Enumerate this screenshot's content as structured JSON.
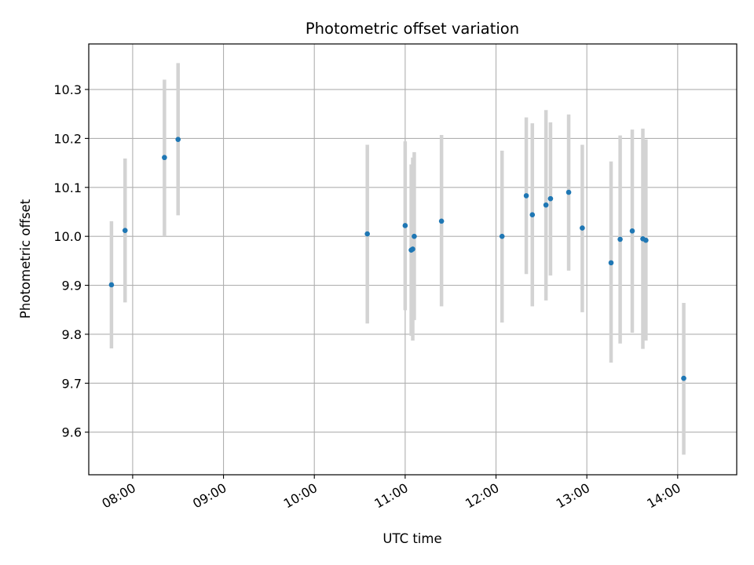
{
  "chart_data": {
    "type": "scatter",
    "title": "Photometric offset variation",
    "xlabel": "UTC time",
    "ylabel": "Photometric offset",
    "x_unit": "UTC time (HH:MM)",
    "xlim": [
      "07:31",
      "14:39"
    ],
    "ylim": [
      9.513,
      10.393
    ],
    "grid": true,
    "x_ticks": [
      "08:00",
      "09:00",
      "10:00",
      "11:00",
      "12:00",
      "13:00",
      "14:00"
    ],
    "y_ticks": [
      "9.6",
      "9.7",
      "9.8",
      "9.9",
      "10.0",
      "10.1",
      "10.2",
      "10.3"
    ],
    "point_color": "#1f77b4",
    "errorbar_color": "#d3d3d3",
    "points": [
      {
        "x": "07:46",
        "y": 9.901,
        "ylow": 9.771,
        "yhigh": 10.031
      },
      {
        "x": "07:55",
        "y": 10.012,
        "ylow": 9.865,
        "yhigh": 10.159
      },
      {
        "x": "08:21",
        "y": 10.161,
        "ylow": 10.0,
        "yhigh": 10.32
      },
      {
        "x": "08:30",
        "y": 10.198,
        "ylow": 10.043,
        "yhigh": 10.354
      },
      {
        "x": "10:35",
        "y": 10.005,
        "ylow": 9.822,
        "yhigh": 10.187
      },
      {
        "x": "11:00",
        "y": 10.022,
        "ylow": 9.849,
        "yhigh": 10.194
      },
      {
        "x": "11:04",
        "y": 9.972,
        "ylow": 9.797,
        "yhigh": 10.147
      },
      {
        "x": "11:05",
        "y": 9.974,
        "ylow": 9.787,
        "yhigh": 10.161
      },
      {
        "x": "11:06",
        "y": 10.0,
        "ylow": 9.829,
        "yhigh": 10.172
      },
      {
        "x": "11:24",
        "y": 10.031,
        "ylow": 9.857,
        "yhigh": 10.207
      },
      {
        "x": "12:04",
        "y": 10.0,
        "ylow": 9.824,
        "yhigh": 10.175
      },
      {
        "x": "12:20",
        "y": 10.083,
        "ylow": 9.923,
        "yhigh": 10.243
      },
      {
        "x": "12:24",
        "y": 10.044,
        "ylow": 9.857,
        "yhigh": 10.231
      },
      {
        "x": "12:33",
        "y": 10.064,
        "ylow": 9.869,
        "yhigh": 10.258
      },
      {
        "x": "12:36",
        "y": 10.077,
        "ylow": 9.92,
        "yhigh": 10.233
      },
      {
        "x": "12:48",
        "y": 10.09,
        "ylow": 9.93,
        "yhigh": 10.249
      },
      {
        "x": "12:57",
        "y": 10.017,
        "ylow": 9.845,
        "yhigh": 10.187
      },
      {
        "x": "13:16",
        "y": 9.946,
        "ylow": 9.742,
        "yhigh": 10.153
      },
      {
        "x": "13:22",
        "y": 9.994,
        "ylow": 9.781,
        "yhigh": 10.206
      },
      {
        "x": "13:30",
        "y": 10.011,
        "ylow": 9.803,
        "yhigh": 10.218
      },
      {
        "x": "13:37",
        "y": 9.995,
        "ylow": 9.77,
        "yhigh": 10.22
      },
      {
        "x": "13:39",
        "y": 9.992,
        "ylow": 9.787,
        "yhigh": 10.198
      },
      {
        "x": "14:04",
        "y": 9.71,
        "ylow": 9.554,
        "yhigh": 9.864
      }
    ]
  }
}
